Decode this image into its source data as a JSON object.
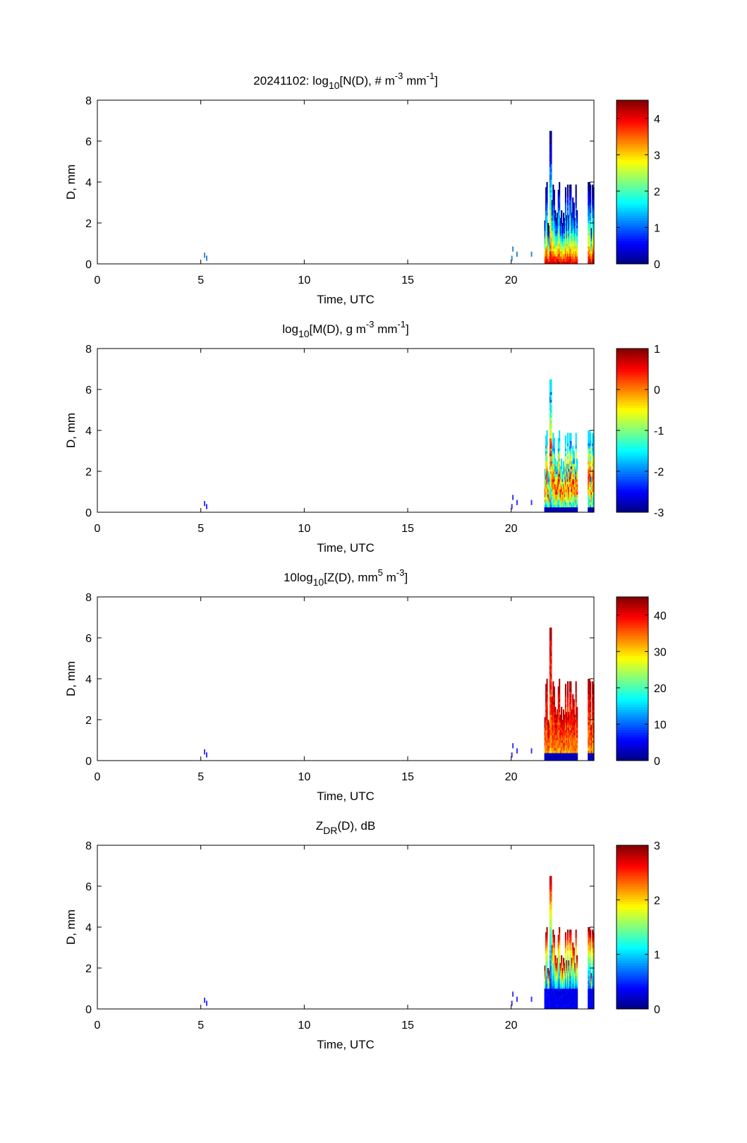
{
  "figure": {
    "date_label": "20241102"
  },
  "chart_data": [
    {
      "type": "heatmap",
      "title_parts": {
        "prefix": "20241102: log",
        "sub": "10",
        "main": "[N(D), # m",
        "sup1": "-3",
        "mid": " mm",
        "sup2": "-1",
        "end": "]"
      },
      "xlabel": "Time, UTC",
      "ylabel": "D, mm",
      "xlim": [
        0,
        24
      ],
      "ylim": [
        0,
        8
      ],
      "xticks": [
        "0",
        "5",
        "10",
        "15",
        "20"
      ],
      "yticks": [
        "0",
        "2",
        "4",
        "6",
        "8"
      ],
      "colorbar": {
        "range": [
          0,
          4.5
        ],
        "ticks": [
          "0",
          "1",
          "2",
          "3",
          "4"
        ],
        "tick_values": [
          0,
          1,
          2,
          3,
          4
        ]
      },
      "pattern": "N",
      "data_summary": {
        "peak_d_mm": 6.5,
        "max_value": 4.4,
        "active_time_range": [
          21.6,
          24.0
        ]
      }
    },
    {
      "type": "heatmap",
      "title_parts": {
        "prefix": "log",
        "sub": "10",
        "main": "[M(D), g m",
        "sup1": "-3",
        "mid": " mm",
        "sup2": "-1",
        "end": "]"
      },
      "xlabel": "Time, UTC",
      "ylabel": "D, mm",
      "xlim": [
        0,
        24
      ],
      "ylim": [
        0,
        8
      ],
      "xticks": [
        "0",
        "5",
        "10",
        "15",
        "20"
      ],
      "yticks": [
        "0",
        "2",
        "4",
        "6",
        "8"
      ],
      "colorbar": {
        "range": [
          -3,
          1
        ],
        "ticks": [
          "-3",
          "-2",
          "-1",
          "0",
          "1"
        ],
        "tick_values": [
          -3,
          -2,
          -1,
          0,
          1
        ]
      },
      "pattern": "M",
      "data_summary": {
        "peak_d_mm": 6.5,
        "max_value": 0.3,
        "active_time_range": [
          21.6,
          24.0
        ]
      }
    },
    {
      "type": "heatmap",
      "title_parts": {
        "prefix": "10log",
        "sub": "10",
        "main": "[Z(D),  mm",
        "sup1": "5",
        "mid": " m",
        "sup2": "-3",
        "end": "]"
      },
      "xlabel": "Time, UTC",
      "ylabel": "D, mm",
      "xlim": [
        0,
        24
      ],
      "ylim": [
        0,
        8
      ],
      "xticks": [
        "0",
        "5",
        "10",
        "15",
        "20"
      ],
      "yticks": [
        "0",
        "2",
        "4",
        "6",
        "8"
      ],
      "colorbar": {
        "range": [
          0,
          45
        ],
        "ticks": [
          "0",
          "10",
          "20",
          "30",
          "40"
        ],
        "tick_values": [
          0,
          10,
          20,
          30,
          40
        ]
      },
      "pattern": "Z",
      "data_summary": {
        "peak_d_mm": 6.5,
        "max_value": 44,
        "active_time_range": [
          21.6,
          24.0
        ]
      }
    },
    {
      "type": "heatmap",
      "title_parts": {
        "prefix": "Z",
        "sub": "DR",
        "main": "(D), dB",
        "sup1": "",
        "mid": "",
        "sup2": "",
        "end": ""
      },
      "xlabel": "Time, UTC",
      "ylabel": "D, mm",
      "xlim": [
        0,
        24
      ],
      "ylim": [
        0,
        8
      ],
      "xticks": [
        "0",
        "5",
        "10",
        "15",
        "20"
      ],
      "yticks": [
        "0",
        "2",
        "4",
        "6",
        "8"
      ],
      "colorbar": {
        "range": [
          0,
          3
        ],
        "ticks": [
          "0",
          "1",
          "2",
          "3"
        ],
        "tick_values": [
          0,
          1,
          2,
          3
        ]
      },
      "pattern": "ZDR",
      "data_summary": {
        "peak_d_mm": 6.5,
        "max_value": 2.8,
        "active_time_range": [
          21.6,
          24.0
        ]
      }
    }
  ],
  "colors": {
    "axis": "#000000",
    "background": "#ffffff"
  }
}
